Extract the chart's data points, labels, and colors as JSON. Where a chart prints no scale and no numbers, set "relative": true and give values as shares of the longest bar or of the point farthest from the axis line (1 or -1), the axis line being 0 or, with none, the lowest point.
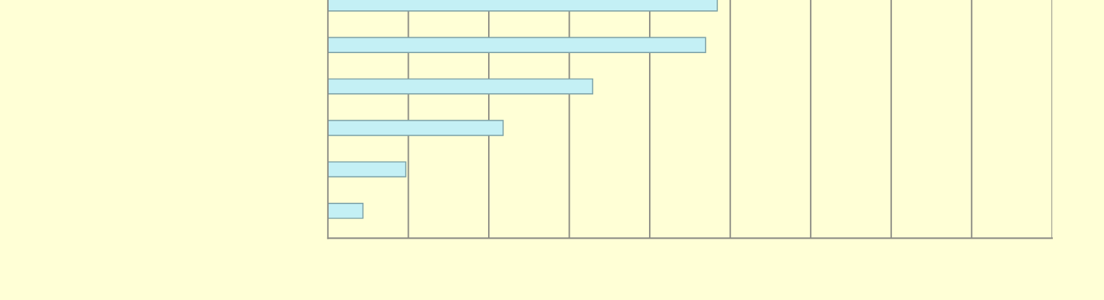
{
  "chart_data": {
    "type": "bar",
    "orientation": "horizontal",
    "relative": true,
    "categories": [
      null,
      null,
      null,
      null,
      null,
      null
    ],
    "values": [
      1,
      0.97,
      0.68,
      0.45,
      0.2,
      0.09
    ],
    "color": "#c4f0f5",
    "grid": "x"
  }
}
